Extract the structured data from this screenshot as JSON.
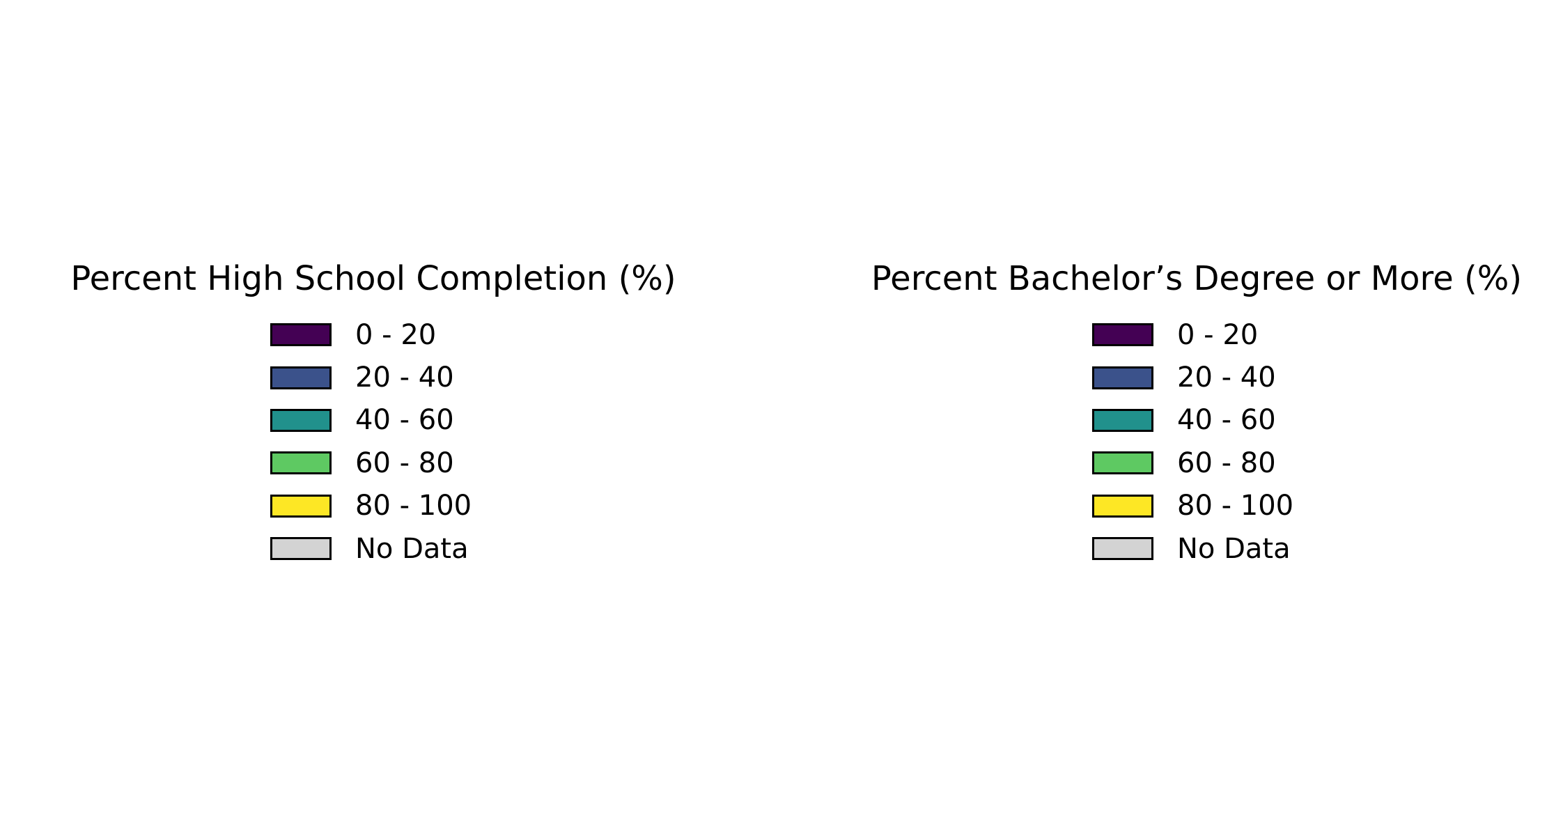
{
  "chart_data": [
    {
      "type": "legend",
      "title": "Percent High School Completion (%)",
      "entries": [
        {
          "label": "0 - 20",
          "color": "#440154"
        },
        {
          "label": "20 - 40",
          "color": "#3b528b"
        },
        {
          "label": "40 - 60",
          "color": "#21918c"
        },
        {
          "label": "60 - 80",
          "color": "#5ec962"
        },
        {
          "label": "80 - 100",
          "color": "#fde725"
        },
        {
          "label": "No Data",
          "color": "#d3d3d3"
        }
      ]
    },
    {
      "type": "legend",
      "title": "Percent Bachelor’s Degree or More (%)",
      "entries": [
        {
          "label": "0 - 20",
          "color": "#440154"
        },
        {
          "label": "20 - 40",
          "color": "#3b528b"
        },
        {
          "label": "40 - 60",
          "color": "#21918c"
        },
        {
          "label": "60 - 80",
          "color": "#5ec962"
        },
        {
          "label": "80 - 100",
          "color": "#fde725"
        },
        {
          "label": "No Data",
          "color": "#d3d3d3"
        }
      ]
    }
  ]
}
